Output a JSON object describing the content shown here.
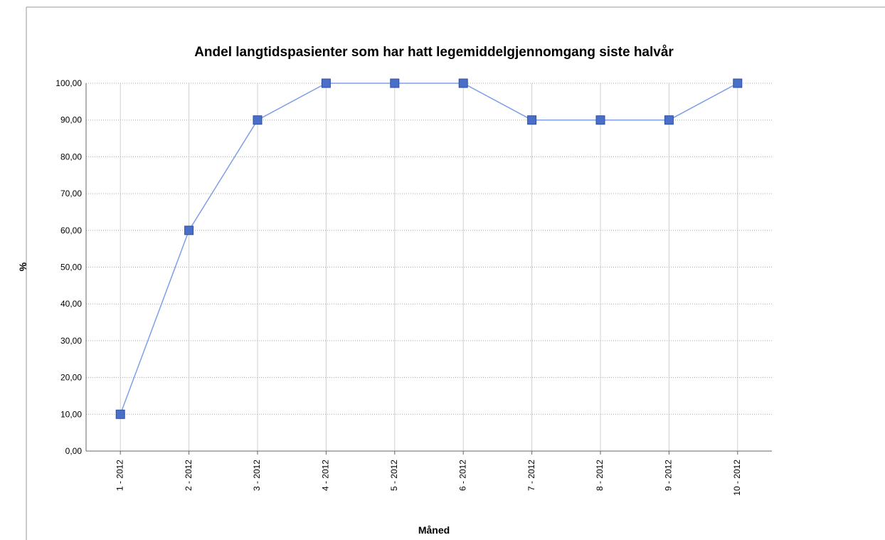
{
  "chart_data": {
    "type": "line",
    "title": "Andel langtidspasienter som har hatt legemiddelgjennomgang siste halvår",
    "x_label": "Måned",
    "y_label": "%",
    "categories": [
      "1 - 2012",
      "2 - 2012",
      "3 - 2012",
      "4 - 2012",
      "5 - 2012",
      "6 - 2012",
      "7 - 2012",
      "8 - 2012",
      "9 - 2012",
      "10 - 2012"
    ],
    "series": [
      {
        "name": "%",
        "color": "#7f9fe6",
        "marker_color": "#4a6fc9",
        "values": [
          10,
          60,
          90,
          100,
          100,
          100,
          90,
          90,
          90,
          100
        ]
      }
    ],
    "ylim": [
      0,
      100
    ],
    "yticks": [
      {
        "value": 0,
        "label": "0,00"
      },
      {
        "value": 10,
        "label": "10,00"
      },
      {
        "value": 20,
        "label": "20,00"
      },
      {
        "value": 30,
        "label": "30,00"
      },
      {
        "value": 40,
        "label": "40,00"
      },
      {
        "value": 50,
        "label": "50,00"
      },
      {
        "value": 60,
        "label": "60,00"
      },
      {
        "value": 70,
        "label": "70,00"
      },
      {
        "value": 80,
        "label": "80,00"
      },
      {
        "value": 90,
        "label": "90,00"
      },
      {
        "value": 100,
        "label": "100,00"
      }
    ],
    "grid": true,
    "legend": false
  }
}
